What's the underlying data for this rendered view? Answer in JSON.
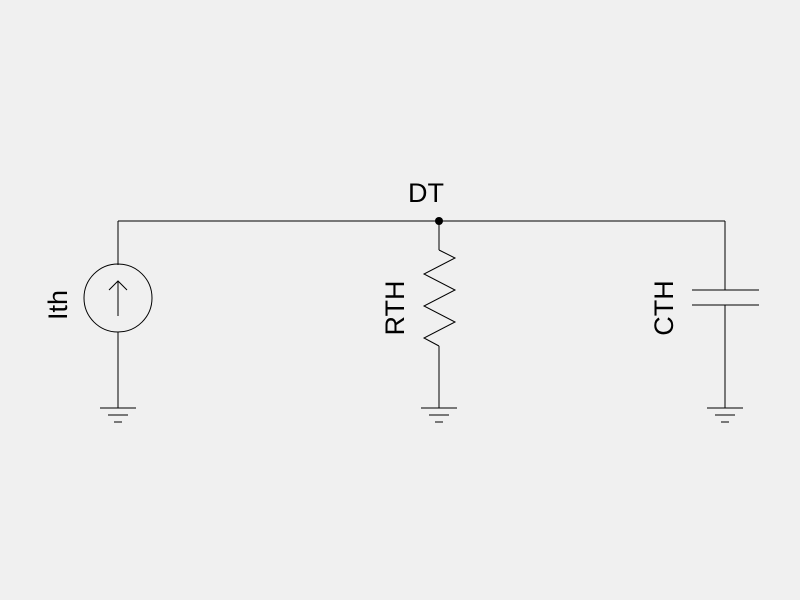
{
  "background_color": "#f0f0f0",
  "line_color": "#000000",
  "nodes": {
    "top": {
      "label": "DT"
    }
  },
  "components": {
    "current_source": {
      "label": "Ith",
      "type": "current-source",
      "direction": "up"
    },
    "resistor": {
      "label": "RTH",
      "type": "resistor"
    },
    "capacitor": {
      "label": "CTH",
      "type": "capacitor"
    }
  },
  "grounds": [
    "ground-current-source",
    "ground-resistor",
    "ground-capacitor"
  ]
}
